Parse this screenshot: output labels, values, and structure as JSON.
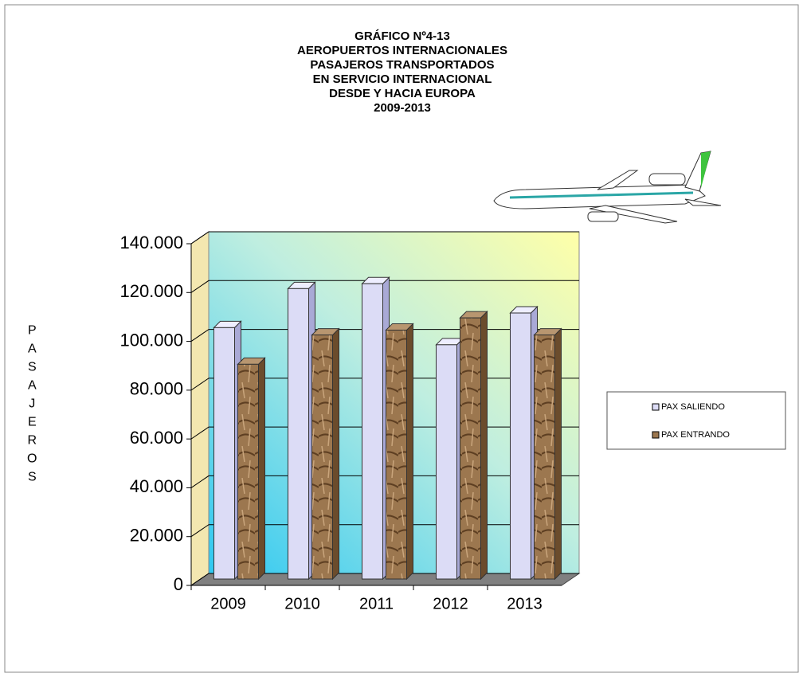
{
  "chart_data": {
    "type": "bar3d",
    "title": [
      "GRÁFICO Nº4-13",
      "AEROPUERTOS INTERNACIONALES",
      "PASAJEROS TRANSPORTADOS",
      "EN SERVICIO INTERNACIONAL",
      "DESDE Y HACIA EUROPA",
      "2009-2013"
    ],
    "y_label": "PASAJEROS",
    "categories": [
      "2009",
      "2010",
      "2011",
      "2012",
      "2013"
    ],
    "series": [
      {
        "name": "PAX SALIENDO",
        "color": "#dcdcf6",
        "values": [
          103000,
          119000,
          121000,
          96000,
          109000
        ]
      },
      {
        "name": "PAX ENTRANDO",
        "color": "#9c774f",
        "values": [
          88000,
          100000,
          102000,
          107000,
          100000
        ]
      }
    ],
    "ylim": [
      0,
      140000
    ],
    "yticks": [
      0,
      {
        "value": 20000,
        "label": "20.000"
      },
      {
        "value": 40000,
        "label": "40.000"
      },
      {
        "value": 60000,
        "label": "60.000"
      },
      {
        "value": 80000,
        "label": "80.000"
      },
      {
        "value": 100000,
        "label": "100.000"
      },
      {
        "value": 120000,
        "label": "120.000"
      },
      {
        "value": 140000,
        "label": "140.000"
      }
    ],
    "grid": true,
    "legend": "right"
  }
}
